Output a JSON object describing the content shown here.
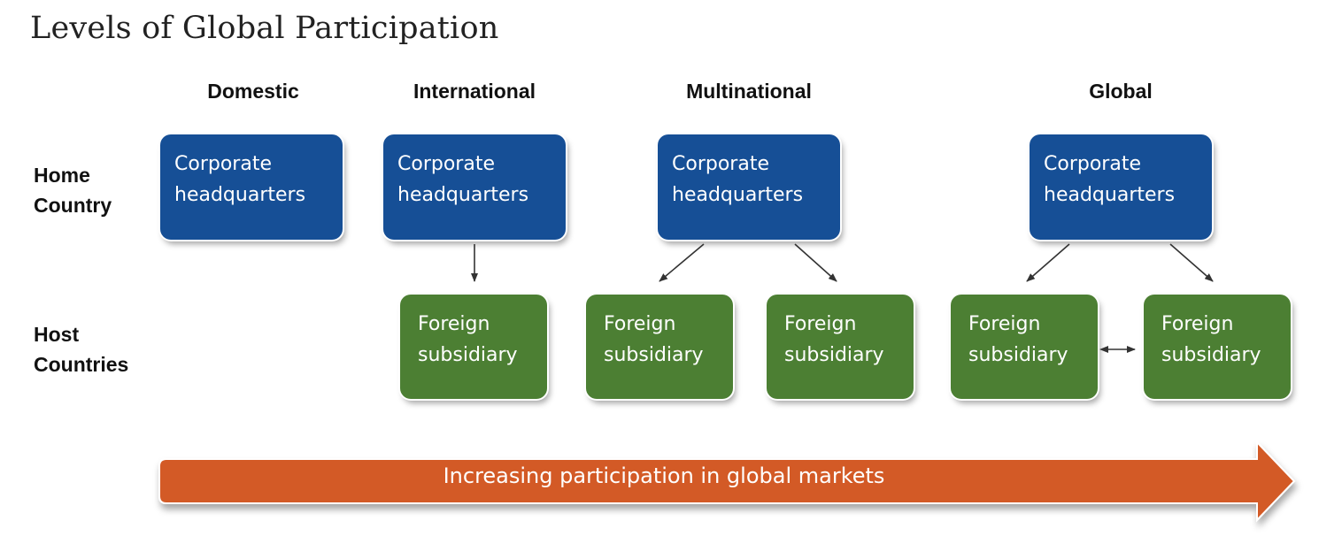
{
  "title": "Levels of Global Participation",
  "columns": [
    "Domestic",
    "International",
    "Multinational",
    "Global"
  ],
  "rows": {
    "home": [
      "Home",
      "Country"
    ],
    "host": [
      "Host",
      "Countries"
    ]
  },
  "hq_label": [
    "Corporate",
    "headquarters"
  ],
  "sub_label": [
    "Foreign",
    "subsidiary"
  ],
  "banner": "Increasing participation in global markets",
  "colors": {
    "headquarters": "#164f96",
    "subsidiary": "#4c7f33",
    "banner": "#d35a25",
    "arrow": "#333333"
  }
}
